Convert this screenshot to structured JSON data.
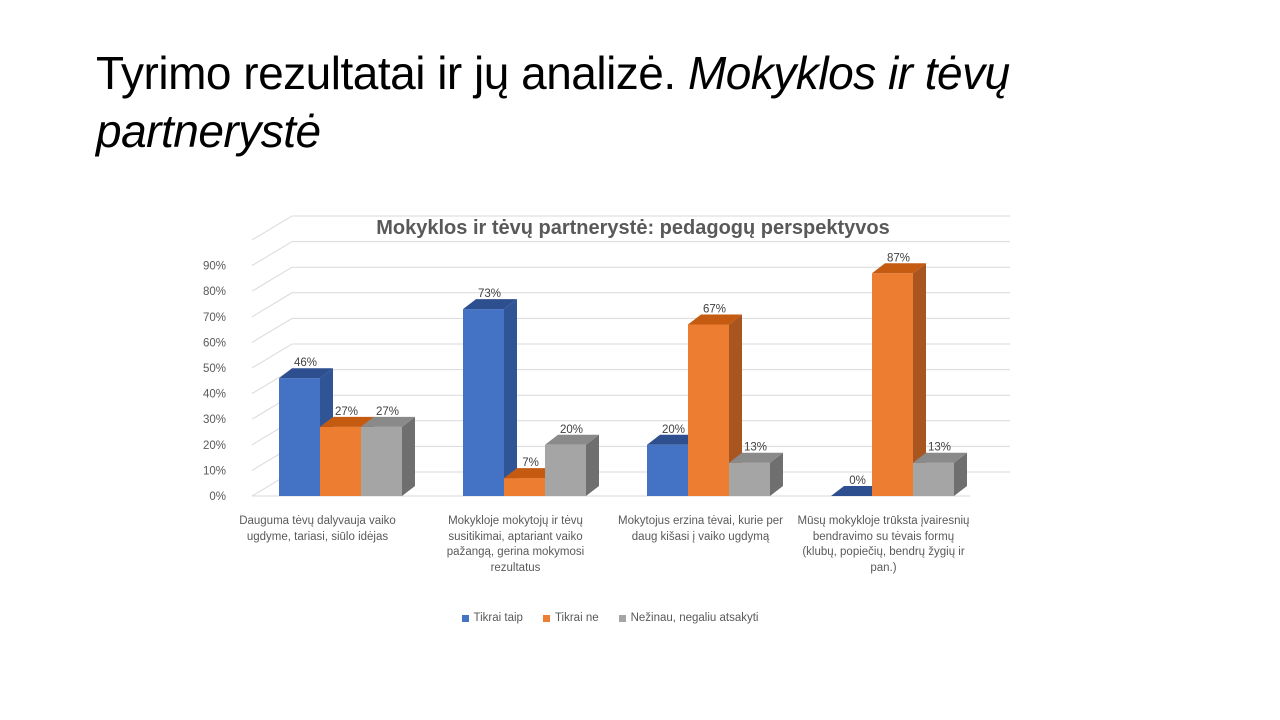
{
  "slide": {
    "title_plain": "Tyrimo rezultatai ir jų analizė. ",
    "title_italic": "Mokyklos ir tėvų partnerystė"
  },
  "chart_data": {
    "type": "bar",
    "title": "Mokyklos ir tėvų partnerystė: pedagogų perspektyvos",
    "categories": [
      "Dauguma tėvų dalyvauja vaiko ugdyme, tariasi, siūlo idėjas",
      "Mokykloje mokytojų ir tėvų susitikimai, aptariant vaiko pažangą, gerina mokymosi rezultatus",
      "Mokytojus erzina tėvai, kurie per daug kišasi į vaiko ugdymą",
      "Mūsų mokykloje trūksta įvairesnių bendravimo su tėvais formų (klubų, popiečių, bendrų žygių ir pan.)"
    ],
    "series": [
      {
        "name": "Tikrai taip",
        "values": [
          46,
          73,
          20,
          0
        ],
        "labels": [
          "46%",
          "73%",
          "20%",
          "0%"
        ],
        "color": "#4472c4",
        "side": "#2f5597",
        "top": "#2e4f8f"
      },
      {
        "name": "Tikrai ne",
        "values": [
          27,
          7,
          67,
          87
        ],
        "labels": [
          "27%",
          "7%",
          "67%",
          "87%"
        ],
        "color": "#ed7d31",
        "side": "#a85520",
        "top": "#c55a11"
      },
      {
        "name": "Nežinau, negaliu atsakyti",
        "values": [
          27,
          20,
          13,
          13
        ],
        "labels": [
          "27%",
          "20%",
          "13%",
          "13%"
        ],
        "color": "#a5a5a5",
        "side": "#6f6f6f",
        "top": "#8a8a8a"
      }
    ],
    "yticks": [
      "0%",
      "10%",
      "20%",
      "30%",
      "40%",
      "50%",
      "60%",
      "70%",
      "80%",
      "90%"
    ],
    "ylim": [
      0,
      90
    ],
    "grid": true,
    "legend_position": "bottom"
  }
}
